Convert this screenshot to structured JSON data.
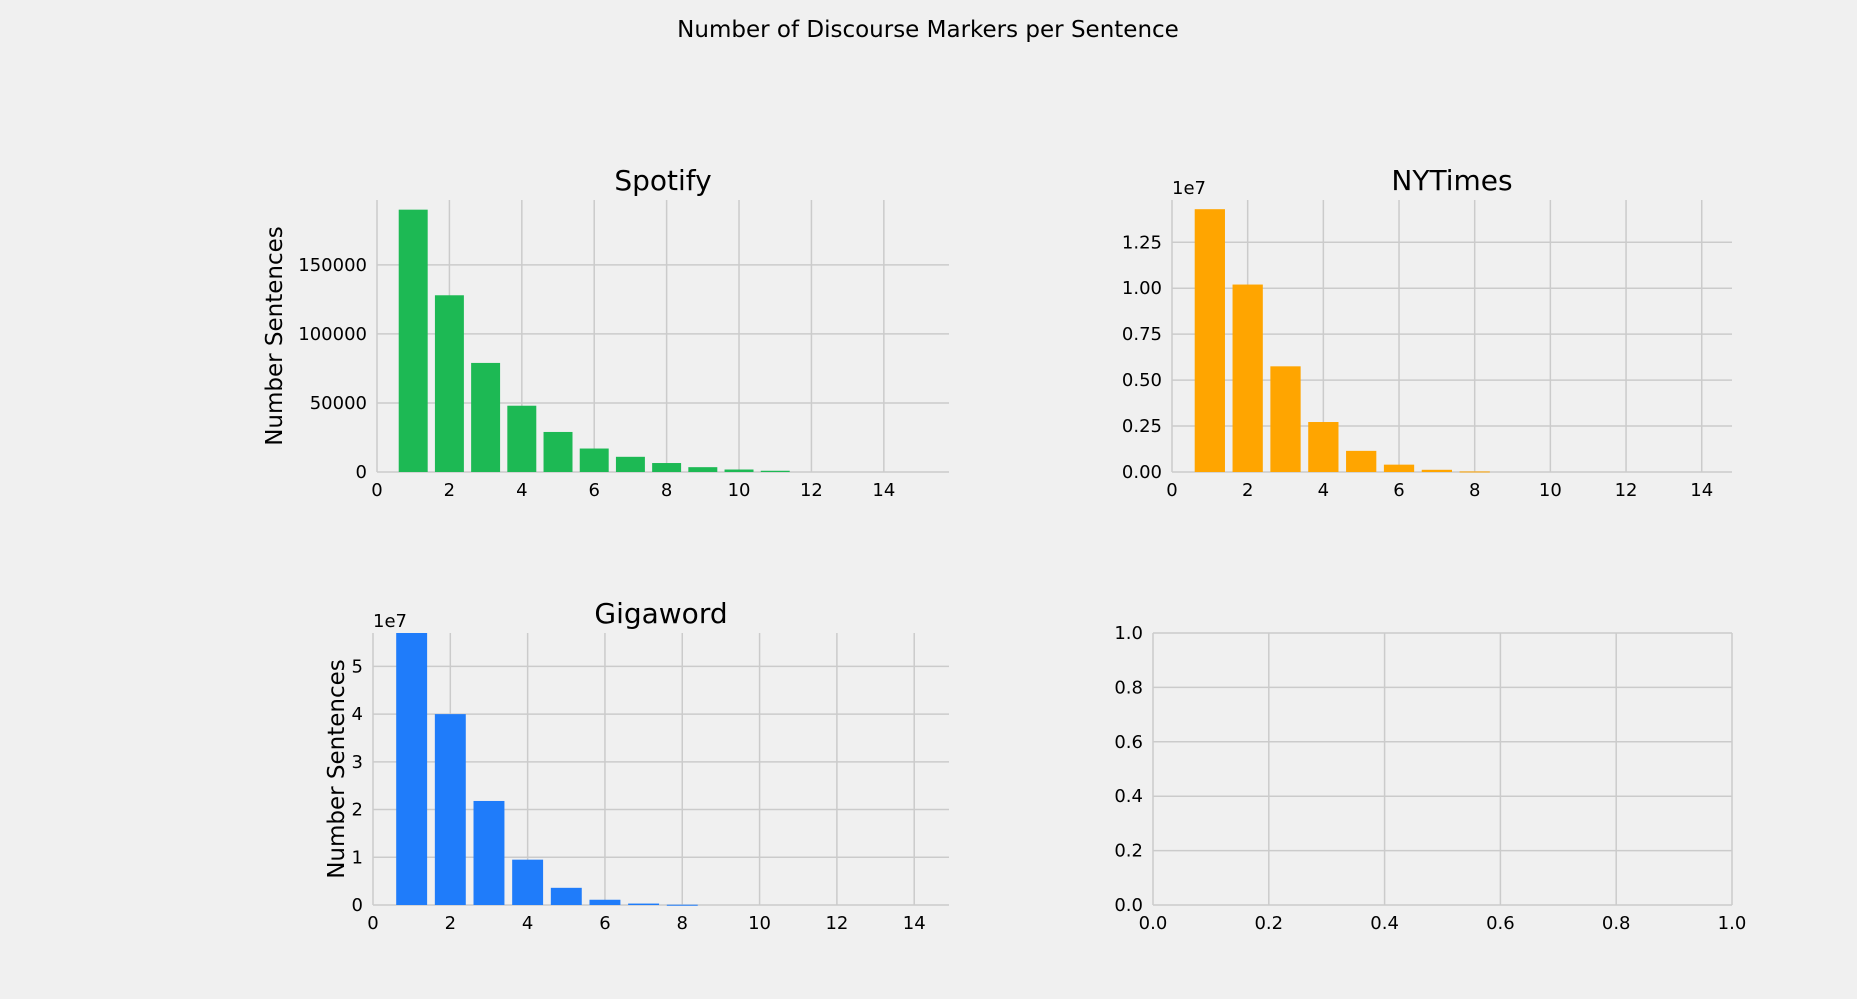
{
  "figure": {
    "title": "Number of Discourse Markers per Sentence",
    "background": "#f0f0f0",
    "grid_color": "#cbcbcb"
  },
  "chart_data": [
    {
      "type": "bar",
      "title": "Spotify",
      "ylabel": "Number Sentences",
      "xlabel": "",
      "color": "#1db954",
      "grid": true,
      "x": [
        1,
        2,
        3,
        4,
        5,
        6,
        7,
        8,
        9,
        10,
        11
      ],
      "values": [
        190000,
        128000,
        79000,
        48000,
        29000,
        17000,
        11000,
        6500,
        3500,
        1800,
        900
      ],
      "xlim": [
        0,
        15.8
      ],
      "ylim": [
        0,
        197000
      ],
      "xticks": [
        0,
        2,
        4,
        6,
        8,
        10,
        12,
        14
      ],
      "xtick_labels": [
        "0",
        "2",
        "4",
        "6",
        "8",
        "10",
        "12",
        "14"
      ],
      "yticks": [
        0,
        50000,
        100000,
        150000
      ],
      "ytick_labels": [
        "0",
        "50000",
        "100000",
        "150000"
      ],
      "offset_label": ""
    },
    {
      "type": "bar",
      "title": "NYTimes",
      "ylabel": "",
      "xlabel": "",
      "color": "#ffa500",
      "grid": true,
      "x": [
        1,
        2,
        3,
        4,
        5,
        6,
        7,
        8
      ],
      "values": [
        14300000,
        10200000,
        5750000,
        2720000,
        1150000,
        400000,
        120000,
        30000
      ],
      "xlim": [
        0,
        14.8
      ],
      "ylim": [
        0,
        14800000
      ],
      "xticks": [
        0,
        2,
        4,
        6,
        8,
        10,
        12,
        14
      ],
      "xtick_labels": [
        "0",
        "2",
        "4",
        "6",
        "8",
        "10",
        "12",
        "14"
      ],
      "yticks": [
        0,
        2500000,
        5000000,
        7500000,
        10000000,
        12500000
      ],
      "ytick_labels": [
        "0.00",
        "0.25",
        "0.50",
        "0.75",
        "1.00",
        "1.25"
      ],
      "offset_label": "1e7"
    },
    {
      "type": "bar",
      "title": "Gigaword",
      "ylabel": "Number Sentences",
      "xlabel": "",
      "color": "#1f7cfa",
      "grid": true,
      "x": [
        1,
        2,
        3,
        4,
        5,
        6,
        7,
        8
      ],
      "values": [
        57000000,
        40000000,
        21800000,
        9500000,
        3600000,
        1100000,
        300000,
        60000
      ],
      "xlim": [
        0,
        14.9
      ],
      "ylim": [
        0,
        57000000
      ],
      "xticks": [
        0,
        2,
        4,
        6,
        8,
        10,
        12,
        14
      ],
      "xtick_labels": [
        "0",
        "2",
        "4",
        "6",
        "8",
        "10",
        "12",
        "14"
      ],
      "yticks": [
        0,
        10000000,
        20000000,
        30000000,
        40000000,
        50000000
      ],
      "ytick_labels": [
        "0",
        "1",
        "2",
        "3",
        "4",
        "5"
      ],
      "offset_label": "1e7"
    },
    {
      "type": "bar",
      "title": "",
      "ylabel": "",
      "xlabel": "",
      "color": "#cbcbcb",
      "grid": true,
      "x": [],
      "values": [],
      "xlim": [
        0,
        1
      ],
      "ylim": [
        0,
        1
      ],
      "xticks": [
        0,
        0.2,
        0.4,
        0.6,
        0.8,
        1.0
      ],
      "xtick_labels": [
        "0.0",
        "0.2",
        "0.4",
        "0.6",
        "0.8",
        "1.0"
      ],
      "yticks": [
        0,
        0.2,
        0.4,
        0.6,
        0.8,
        1.0
      ],
      "ytick_labels": [
        "0.0",
        "0.2",
        "0.4",
        "0.6",
        "0.8",
        "1.0"
      ],
      "offset_label": ""
    }
  ]
}
